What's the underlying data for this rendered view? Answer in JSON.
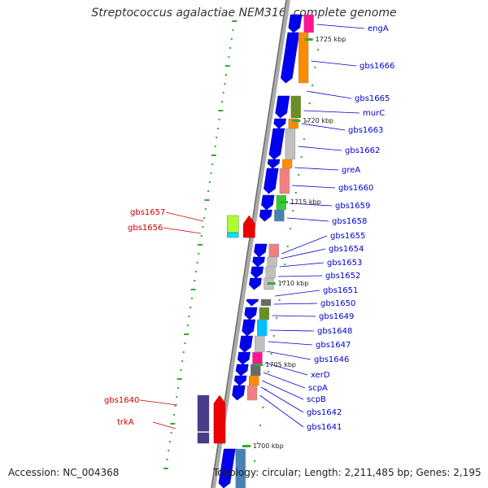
{
  "title": "Streptococcus agalactiae NEM316, complete genome",
  "accession": "Accession: NC_004368",
  "topology": "Topology: circular; Length: 2,211,485 bp; Genes: 2,195",
  "colors": {
    "forward_gene": "#0000ee",
    "reverse_gene": "#ee0000",
    "forward_label": "#0000cc",
    "reverse_label": "#cc0000",
    "backbone": "#999999",
    "tick": "#33aa33"
  },
  "ticks": [
    {
      "label": "1725 kbp"
    },
    {
      "label": "1720 kbp"
    },
    {
      "label": "1715 kbp"
    },
    {
      "label": "1710 kbp"
    },
    {
      "label": "1705 kbp"
    },
    {
      "label": "1700 kbp"
    }
  ],
  "forward_labels": [
    "engA",
    "gbs1666",
    "gbs1665",
    "murC",
    "gbs1663",
    "gbs1662",
    "greA",
    "gbs1660",
    "gbs1659",
    "gbs1658",
    "gbs1655",
    "gbs1654",
    "gbs1653",
    "gbs1652",
    "gbs1651",
    "gbs1650",
    "gbs1649",
    "gbs1648",
    "gbs1647",
    "gbs1646",
    "xerD",
    "scpA",
    "scpB",
    "gbs1642",
    "gbs1641"
  ],
  "reverse_labels": [
    "gbs1657",
    "gbs1656",
    "gbs1640",
    "trkA"
  ]
}
